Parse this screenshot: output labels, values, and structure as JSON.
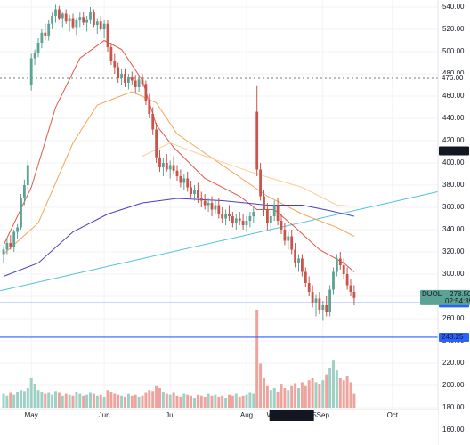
{
  "chart_data": {
    "type": "candlestick",
    "open": [
      318,
      322,
      328,
      324,
      338,
      342,
      368,
      380,
      470,
      494,
      499,
      508,
      517,
      514,
      525,
      532,
      538,
      530,
      534,
      527,
      530,
      522,
      528,
      531,
      526,
      529,
      536,
      524,
      527,
      520,
      525,
      504,
      492,
      486,
      476,
      480,
      472,
      477,
      474,
      468,
      475,
      471,
      456,
      444,
      430,
      405,
      396,
      400,
      394,
      398,
      393,
      388,
      382,
      386,
      378,
      372,
      376,
      368,
      366,
      362,
      364,
      358,
      362,
      354,
      350,
      354,
      352,
      346,
      350,
      348,
      344,
      348,
      352,
      446,
      394,
      370,
      358,
      346,
      352,
      362,
      348,
      340,
      330,
      334,
      322,
      310,
      314,
      302,
      292,
      284,
      274,
      278,
      268,
      272,
      266,
      286,
      302,
      314,
      308,
      300,
      290,
      284
    ],
    "high": [
      325,
      332,
      335,
      340,
      345,
      372,
      385,
      402,
      498,
      502,
      512,
      520,
      525,
      528,
      535,
      542,
      541,
      536,
      538,
      533,
      534,
      530,
      535,
      536,
      532,
      540,
      538,
      530,
      532,
      528,
      528,
      508,
      498,
      490,
      484,
      485,
      480,
      482,
      479,
      478,
      480,
      474,
      462,
      450,
      436,
      412,
      404,
      408,
      402,
      406,
      398,
      394,
      390,
      392,
      384,
      380,
      382,
      374,
      372,
      368,
      370,
      366,
      368,
      360,
      358,
      362,
      356,
      354,
      356,
      354,
      352,
      356,
      360,
      469,
      400,
      376,
      364,
      356,
      366,
      368,
      354,
      346,
      338,
      340,
      328,
      318,
      318,
      306,
      298,
      290,
      282,
      284,
      276,
      280,
      290,
      306,
      318,
      320,
      314,
      306,
      296,
      290
    ],
    "low": [
      310,
      318,
      322,
      320,
      332,
      340,
      362,
      376,
      465,
      488,
      495,
      503,
      510,
      510,
      520,
      526,
      528,
      522,
      525,
      518,
      520,
      515,
      522,
      524,
      518,
      525,
      522,
      516,
      518,
      512,
      500,
      488,
      480,
      472,
      470,
      468,
      466,
      470,
      462,
      464,
      468,
      452,
      440,
      425,
      400,
      392,
      388,
      392,
      386,
      390,
      384,
      378,
      376,
      374,
      368,
      366,
      364,
      360,
      358,
      356,
      352,
      354,
      350,
      346,
      344,
      348,
      342,
      340,
      344,
      340,
      338,
      342,
      346,
      388,
      366,
      352,
      340,
      338,
      348,
      344,
      336,
      326,
      322,
      318,
      306,
      302,
      298,
      288,
      280,
      270,
      262,
      264,
      258,
      262,
      262,
      282,
      298,
      304,
      296,
      286,
      280,
      272
    ],
    "close": [
      322,
      328,
      324,
      338,
      342,
      368,
      380,
      398,
      494,
      499,
      508,
      517,
      514,
      525,
      532,
      538,
      530,
      534,
      527,
      530,
      522,
      528,
      531,
      526,
      529,
      536,
      524,
      527,
      520,
      525,
      504,
      492,
      486,
      476,
      480,
      472,
      477,
      474,
      468,
      475,
      471,
      456,
      444,
      430,
      405,
      396,
      400,
      394,
      398,
      393,
      388,
      382,
      386,
      378,
      372,
      376,
      368,
      366,
      362,
      364,
      358,
      362,
      354,
      350,
      354,
      352,
      346,
      350,
      348,
      344,
      348,
      352,
      356,
      394,
      370,
      358,
      346,
      352,
      362,
      348,
      340,
      330,
      334,
      322,
      310,
      314,
      302,
      292,
      284,
      274,
      278,
      268,
      272,
      266,
      286,
      302,
      314,
      308,
      300,
      290,
      284,
      278.5
    ],
    "volume": [
      14,
      12,
      15,
      13,
      16,
      18,
      17,
      20,
      30,
      24,
      18,
      16,
      14,
      15,
      13,
      17,
      15,
      12,
      14,
      13,
      12,
      16,
      14,
      12,
      13,
      15,
      14,
      12,
      13,
      11,
      18,
      16,
      14,
      13,
      12,
      11,
      14,
      12,
      13,
      11,
      12,
      15,
      18,
      17,
      22,
      20,
      16,
      14,
      13,
      15,
      12,
      11,
      14,
      13,
      12,
      10,
      13,
      12,
      11,
      14,
      12,
      13,
      11,
      12,
      10,
      13,
      12,
      14,
      11,
      12,
      13,
      15,
      14,
      100,
      45,
      30,
      22,
      18,
      20,
      16,
      24,
      20,
      18,
      22,
      25,
      20,
      26,
      22,
      28,
      30,
      26,
      24,
      28,
      34,
      40,
      48,
      38,
      30,
      28,
      32,
      26,
      14
    ],
    "up_color": "#5ba395",
    "down_color": "#c8544b",
    "up_volume_color": "#9fd0c6",
    "down_volume_color": "#eea39d",
    "ylim": [
      160,
      540
    ],
    "vlim": [
      0,
      100
    ],
    "yticks": [
      {
        "value": 160,
        "label": "160.00"
      },
      {
        "value": 180,
        "label": "180.00"
      },
      {
        "value": 200,
        "label": "200.00"
      },
      {
        "value": 220,
        "label": "220.00"
      },
      {
        "value": 240,
        "label": "240.00"
      },
      {
        "value": 260,
        "label": "260.00"
      },
      {
        "value": 280,
        "label": "280.00"
      },
      {
        "value": 300,
        "label": "300.00"
      },
      {
        "value": 320,
        "label": "320.00"
      },
      {
        "value": 340,
        "label": "340.00"
      },
      {
        "value": 360,
        "label": "360.00"
      },
      {
        "value": 380,
        "label": "380.00"
      },
      {
        "value": 400,
        "label": "400.00"
      },
      {
        "value": 420,
        "label": "420.00"
      },
      {
        "value": 440,
        "label": "440.00"
      },
      {
        "value": 460,
        "label": "460.00"
      },
      {
        "value": 480,
        "label": "480.00"
      },
      {
        "value": 500,
        "label": "500.00"
      },
      {
        "value": 520,
        "label": "520.00"
      },
      {
        "value": 540,
        "label": "540.00"
      }
    ],
    "xticks": [
      {
        "value": 8,
        "label": "May"
      },
      {
        "value": 29,
        "label": "Jun"
      },
      {
        "value": 48,
        "label": "Jul"
      },
      {
        "value": 70,
        "label": "Aug"
      },
      {
        "value": 92,
        "label": "Sep"
      },
      {
        "value": 112,
        "label": "Oct"
      }
    ],
    "grid": true,
    "lines": [
      {
        "color": "#e0554a",
        "x": [
          0,
          8,
          15,
          22,
          29,
          34,
          40,
          44,
          49,
          58,
          68,
          73,
          78,
          84,
          91,
          98,
          101
        ],
        "values": [
          326,
          378,
          450,
          494,
          510,
          502,
          474,
          434,
          414,
          386,
          370,
          358,
          358,
          342,
          322,
          310,
          302
        ]
      },
      {
        "color": "#f2a65a",
        "x": [
          0,
          10,
          20,
          27,
          37,
          44,
          50,
          63,
          76,
          86,
          96,
          101
        ],
        "values": [
          318,
          346,
          418,
          452,
          464,
          454,
          426,
          398,
          370,
          354,
          342,
          334
        ]
      },
      {
        "color": "#f8cf9a",
        "x": [
          40,
          48,
          58,
          73,
          86,
          96,
          101
        ],
        "values": [
          406,
          418,
          406,
          390,
          378,
          362,
          361
        ]
      },
      {
        "color": "#4a3fc0",
        "x": [
          0,
          10,
          20,
          30,
          40,
          50,
          63,
          76,
          86,
          94,
          101
        ],
        "values": [
          298,
          310,
          338,
          354,
          364,
          368,
          366,
          362,
          362,
          357,
          352
        ]
      }
    ],
    "trendline": {
      "color": "#4fc3d9",
      "x": [
        -1,
        125
      ],
      "values": [
        285,
        374
      ]
    },
    "hlines": [
      {
        "value": 274.1,
        "label": "274.10",
        "color": "#2962ff"
      },
      {
        "value": 243.25,
        "label": "243.25",
        "color": "#2962ff"
      }
    ],
    "markers": [
      {
        "value": 410.82,
        "label": "410.82",
        "color": "#131722"
      }
    ],
    "last_price": {
      "symbol": "DUOL",
      "value": 278.5,
      "label": "278.50",
      "countdown": "02:54:39",
      "color": "#5ba395"
    },
    "crosshair": {
      "y": {
        "value": 476,
        "label": "476.00"
      },
      "x": {
        "value": 83,
        "label": "Wed 20 Aug '25"
      }
    }
  }
}
